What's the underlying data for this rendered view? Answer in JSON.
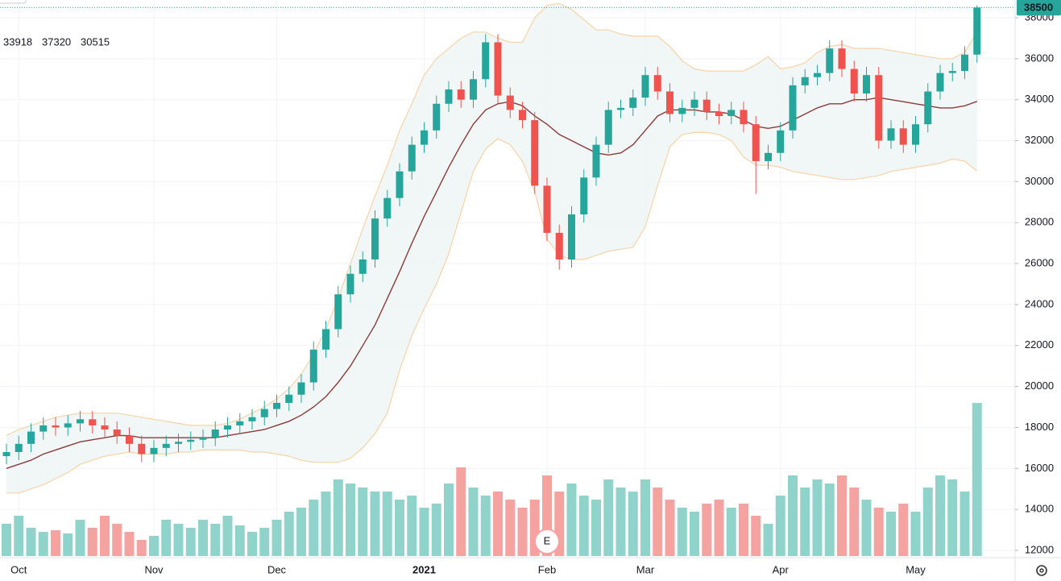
{
  "chart_data": {
    "type": "candlestick",
    "categories": [
      null,
      "Oct",
      null,
      null,
      null,
      null,
      null,
      null,
      null,
      null,
      null,
      null,
      "Nov",
      null,
      null,
      null,
      null,
      null,
      null,
      null,
      null,
      null,
      "Dec",
      null,
      null,
      null,
      null,
      null,
      null,
      null,
      null,
      null,
      null,
      null,
      "2021",
      null,
      null,
      null,
      null,
      null,
      null,
      null,
      null,
      null,
      "Feb",
      null,
      null,
      null,
      null,
      null,
      null,
      null,
      "Mar",
      null,
      null,
      null,
      null,
      null,
      null,
      null,
      null,
      null,
      null,
      "Apr",
      null,
      null,
      null,
      null,
      null,
      null,
      null,
      null,
      null,
      null,
      "May",
      null,
      null,
      null,
      null,
      null
    ],
    "open": [
      16600,
      16800,
      17200,
      17800,
      18100,
      18000,
      18200,
      18400,
      18100,
      17900,
      17600,
      17200,
      16700,
      17000,
      17200,
      17300,
      17400,
      17500,
      17900,
      18100,
      18300,
      18500,
      18900,
      19200,
      19600,
      20200,
      21800,
      22800,
      24500,
      25500,
      26200,
      28200,
      29200,
      30500,
      31800,
      32500,
      33800,
      34500,
      34000,
      35000,
      36800,
      34200,
      33500,
      33000,
      29800,
      27500,
      26200,
      28400,
      30200,
      31800,
      33500,
      33600,
      34100,
      35200,
      34400,
      33300,
      33600,
      34000,
      33400,
      33200,
      33500,
      32800,
      31000,
      31400,
      32500,
      34700,
      35100,
      35300,
      36500,
      35500,
      34300,
      35200,
      32000,
      32600,
      31800,
      32800,
      34400,
      35300,
      35400,
      36200
    ],
    "high": [
      17200,
      17600,
      18200,
      18500,
      18500,
      18600,
      18800,
      18800,
      18500,
      18300,
      18000,
      17600,
      17400,
      17600,
      17700,
      17800,
      17900,
      18300,
      18500,
      18700,
      18900,
      19300,
      19600,
      20000,
      20600,
      22200,
      23200,
      24900,
      25900,
      26600,
      28600,
      29600,
      30900,
      32200,
      32900,
      34200,
      34900,
      34900,
      35400,
      37200,
      37200,
      34600,
      33900,
      33400,
      30200,
      27900,
      28800,
      30600,
      32200,
      33900,
      34000,
      34500,
      35600,
      35600,
      34800,
      34000,
      34400,
      34400,
      33800,
      33900,
      33900,
      33200,
      31800,
      32900,
      35100,
      35500,
      35700,
      36900,
      36900,
      35900,
      35600,
      35600,
      33000,
      33000,
      33200,
      34800,
      35700,
      35800,
      36600,
      38600
    ],
    "low": [
      16200,
      16400,
      16800,
      17400,
      17600,
      17600,
      17800,
      17700,
      17500,
      17200,
      16800,
      16300,
      16300,
      16600,
      16800,
      16900,
      17000,
      17100,
      17500,
      17700,
      17900,
      18100,
      18500,
      18800,
      19200,
      19800,
      21400,
      22400,
      24100,
      25100,
      25800,
      27800,
      28800,
      30100,
      31400,
      32100,
      33400,
      33600,
      33600,
      34600,
      33800,
      33100,
      32600,
      29400,
      27100,
      25700,
      25800,
      28000,
      29800,
      31400,
      33100,
      33200,
      33700,
      34000,
      32900,
      32900,
      33200,
      33000,
      32800,
      32800,
      32400,
      29400,
      30600,
      31000,
      32100,
      34300,
      34700,
      34900,
      35100,
      33900,
      33900,
      31600,
      31600,
      31400,
      31400,
      32400,
      34000,
      34900,
      35000,
      35800
    ],
    "close": [
      16800,
      17200,
      17800,
      18100,
      18000,
      18200,
      18400,
      18100,
      17900,
      17600,
      17200,
      16700,
      17000,
      17200,
      17300,
      17400,
      17500,
      17900,
      18100,
      18300,
      18500,
      18900,
      19200,
      19600,
      20200,
      21800,
      22800,
      24500,
      25500,
      26200,
      28200,
      29200,
      30500,
      31800,
      32500,
      33800,
      34500,
      34000,
      35000,
      36800,
      34200,
      33500,
      33000,
      29800,
      27500,
      26200,
      28400,
      30200,
      31800,
      33500,
      33600,
      34100,
      35200,
      34400,
      33300,
      33600,
      34000,
      33400,
      33200,
      33500,
      32800,
      31000,
      31400,
      32500,
      34700,
      35100,
      35300,
      36500,
      35500,
      34300,
      35200,
      32000,
      32600,
      31800,
      32800,
      34400,
      35300,
      35400,
      36200,
      38500
    ],
    "volume": [
      40,
      50,
      35,
      30,
      32,
      28,
      45,
      35,
      50,
      40,
      30,
      20,
      25,
      45,
      40,
      35,
      45,
      40,
      50,
      38,
      30,
      35,
      45,
      55,
      60,
      70,
      80,
      95,
      90,
      85,
      80,
      80,
      70,
      75,
      60,
      65,
      90,
      110,
      85,
      75,
      80,
      70,
      60,
      70,
      100,
      80,
      90,
      75,
      70,
      95,
      85,
      80,
      95,
      85,
      70,
      60,
      55,
      65,
      70,
      60,
      65,
      50,
      40,
      75,
      100,
      85,
      95,
      90,
      100,
      85,
      70,
      60,
      55,
      65,
      55,
      85,
      100,
      95,
      80,
      190
    ],
    "up_color": "#26a69a",
    "down_color": "#ef5350",
    "volume_up_color": "#8fd3cb",
    "volume_down_color": "#f5a3a1",
    "middle": {
      "color": "#8b3a3a",
      "values": [
        16000,
        16200,
        16400,
        16700,
        16900,
        17100,
        17300,
        17400,
        17500,
        17600,
        17600,
        17500,
        17500,
        17500,
        17500,
        17500,
        17500,
        17500,
        17600,
        17700,
        17800,
        17900,
        18100,
        18300,
        18600,
        19000,
        19500,
        20200,
        21000,
        22000,
        23000,
        24300,
        25600,
        27000,
        28300,
        29500,
        30700,
        31800,
        32800,
        33500,
        33800,
        33900,
        33700,
        33200,
        32800,
        32300,
        32000,
        31700,
        31400,
        31300,
        31400,
        31800,
        32500,
        33200,
        33500,
        33500,
        33500,
        33400,
        33400,
        33300,
        33000,
        32700,
        32600,
        32700,
        33000,
        33300,
        33600,
        33800,
        33800,
        34000,
        34000,
        34100,
        34000,
        33900,
        33800,
        33700,
        33600,
        33600,
        33700,
        33918
      ]
    },
    "upper": {
      "color": "#f7d3a6",
      "values": [
        17600,
        17900,
        18100,
        18300,
        18500,
        18600,
        18700,
        18700,
        18700,
        18700,
        18600,
        18500,
        18400,
        18300,
        18200,
        18100,
        18100,
        18100,
        18200,
        18400,
        18700,
        19000,
        19400,
        19900,
        20600,
        21600,
        22800,
        24300,
        26000,
        27700,
        29300,
        30800,
        32500,
        33800,
        35200,
        36000,
        36500,
        37000,
        37300,
        37300,
        37000,
        36800,
        36800,
        38000,
        38600,
        38700,
        38400,
        37900,
        37400,
        37400,
        37200,
        37100,
        37100,
        37100,
        36600,
        35900,
        35500,
        35400,
        35400,
        35400,
        35400,
        35700,
        36100,
        35500,
        35600,
        35800,
        36300,
        36600,
        36700,
        36500,
        36500,
        36500,
        36400,
        36300,
        36200,
        36100,
        36000,
        36000,
        36300,
        37320
      ]
    },
    "lower": {
      "color": "#f7d3a6",
      "values": [
        14800,
        14800,
        15000,
        15200,
        15500,
        15800,
        16200,
        16400,
        16600,
        16700,
        16800,
        16700,
        16700,
        16700,
        16800,
        16800,
        16900,
        16900,
        16900,
        16900,
        16800,
        16800,
        16700,
        16600,
        16400,
        16300,
        16300,
        16300,
        16500,
        17000,
        17700,
        18700,
        20800,
        22500,
        23800,
        25000,
        26500,
        28500,
        30500,
        31600,
        32100,
        31800,
        31000,
        29500,
        27200,
        26400,
        26200,
        26200,
        26400,
        26600,
        26700,
        26800,
        27800,
        29800,
        31700,
        32300,
        32400,
        32400,
        32300,
        32000,
        31200,
        30800,
        30800,
        30700,
        30500,
        30400,
        30300,
        30200,
        30100,
        30100,
        30200,
        30300,
        30500,
        30600,
        30700,
        30800,
        30900,
        31100,
        31000,
        30515
      ]
    },
    "band_fill": "#eef6f5",
    "events": [
      {
        "label": "E",
        "at": 44
      }
    ],
    "ylim": [
      11725,
      38865
    ],
    "yticks": [
      12000,
      14000,
      16000,
      18000,
      20000,
      22000,
      24000,
      26000,
      28000,
      30000,
      32000,
      34000,
      36000,
      38000
    ],
    "grid": true
  }
}
